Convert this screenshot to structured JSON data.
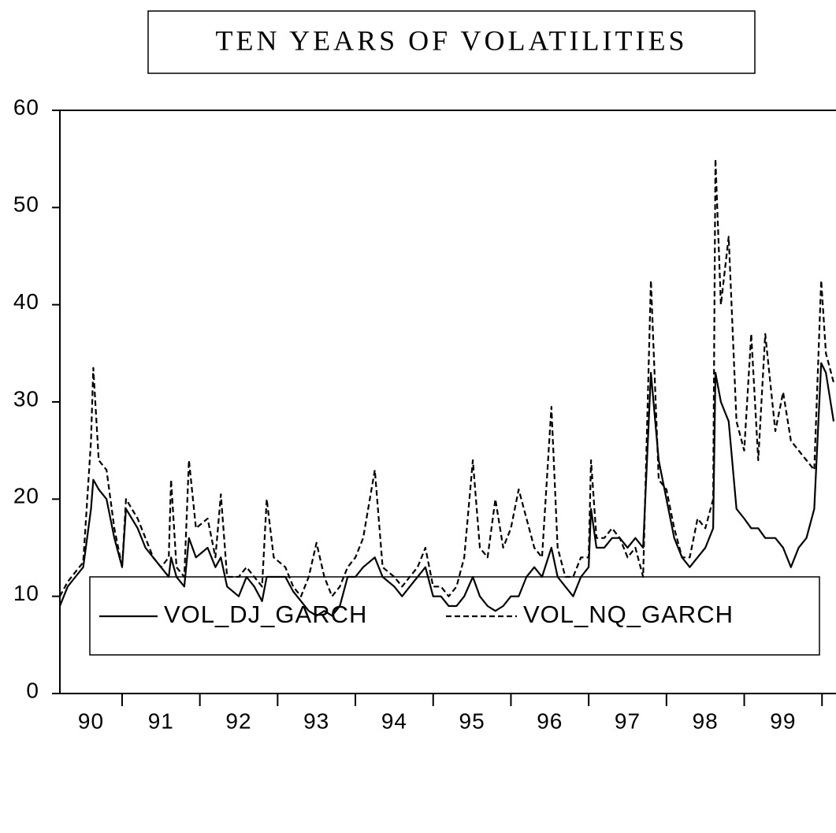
{
  "chart_data": {
    "type": "line",
    "title": "TEN YEARS OF VOLATILITIES",
    "x": [
      1990.2,
      1990.3,
      1990.4,
      1990.5,
      1990.6,
      1990.63,
      1990.7,
      1990.8,
      1990.9,
      1991.0,
      1991.05,
      1991.2,
      1991.3,
      1991.4,
      1991.5,
      1991.6,
      1991.63,
      1991.7,
      1991.8,
      1991.86,
      1991.95,
      1992.1,
      1992.2,
      1992.27,
      1992.35,
      1992.5,
      1992.6,
      1992.7,
      1992.8,
      1992.86,
      1992.95,
      1993.1,
      1993.2,
      1993.3,
      1993.4,
      1993.5,
      1993.6,
      1993.7,
      1993.8,
      1993.9,
      1994.0,
      1994.1,
      1994.25,
      1994.35,
      1994.5,
      1994.6,
      1994.7,
      1994.8,
      1994.9,
      1995.0,
      1995.1,
      1995.2,
      1995.3,
      1995.4,
      1995.51,
      1995.6,
      1995.7,
      1995.8,
      1995.9,
      1996.0,
      1996.1,
      1996.2,
      1996.3,
      1996.4,
      1996.52,
      1996.6,
      1996.7,
      1996.8,
      1996.9,
      1997.0,
      1997.03,
      1997.1,
      1997.2,
      1997.3,
      1997.4,
      1997.5,
      1997.6,
      1997.7,
      1997.8,
      1997.9,
      1998.0,
      1998.1,
      1998.2,
      1998.3,
      1998.4,
      1998.5,
      1998.6,
      1998.63,
      1998.7,
      1998.8,
      1998.9,
      1999.0,
      1999.09,
      1999.18,
      1999.27,
      1999.4,
      1999.5,
      1999.6,
      1999.7,
      1999.8,
      1999.9,
      1999.99,
      2000.05,
      2000.15
    ],
    "series": [
      {
        "name": "VOL_DJ_GARCH",
        "color": "#000000",
        "style": "solid",
        "values": [
          9,
          11,
          12,
          13,
          19,
          22,
          21,
          20,
          16,
          13,
          19,
          17,
          15,
          14,
          13,
          12,
          14,
          12,
          11,
          16,
          14,
          15,
          13,
          14,
          11,
          10,
          12,
          11,
          9.5,
          12,
          12,
          12,
          10.5,
          9.5,
          8.5,
          8,
          8.5,
          8,
          9,
          12,
          12,
          13,
          14,
          12,
          11,
          10,
          11,
          12,
          13,
          10,
          10,
          9,
          9,
          10,
          12,
          10,
          9,
          8.5,
          9,
          10,
          10,
          12,
          13,
          12,
          15,
          12,
          11,
          10,
          12,
          13,
          19,
          15,
          15,
          16,
          16,
          15,
          16,
          15,
          33,
          24,
          20,
          16,
          14,
          13,
          14,
          15,
          17,
          33,
          30,
          28,
          19,
          18,
          17,
          17,
          16,
          16,
          15,
          13,
          15,
          16,
          19,
          34,
          33,
          28
        ]
      },
      {
        "name": "VOL_NQ_GARCH",
        "color": "#000000",
        "style": "dashed",
        "values": [
          10,
          11.5,
          12.5,
          13.5,
          26,
          33.5,
          24,
          23,
          17,
          13,
          20,
          18,
          16,
          14,
          13,
          14,
          22,
          13,
          12,
          24,
          17,
          18,
          14,
          20.5,
          12,
          12,
          13,
          12,
          11,
          20,
          14,
          13,
          11,
          10,
          12,
          15.5,
          12,
          10,
          11,
          13,
          14,
          16,
          23,
          13,
          12,
          11,
          12,
          13,
          15,
          11,
          11,
          10,
          11,
          14,
          24,
          15,
          14,
          20,
          15,
          17,
          21,
          18,
          15,
          14,
          29.5,
          15,
          12,
          12,
          14,
          14,
          24,
          16,
          16,
          17,
          16,
          14,
          15,
          12,
          42.5,
          22,
          21,
          17,
          14,
          14,
          18,
          17,
          20,
          55,
          40,
          47,
          28,
          25,
          37,
          24,
          37,
          27,
          31,
          26,
          25,
          24,
          23,
          42.5,
          35,
          32
        ]
      }
    ],
    "xlim": [
      1990.2,
      2000.18
    ],
    "xticks": [
      {
        "value": 1990.6,
        "label": "90"
      },
      {
        "value": 1991.5,
        "label": "91"
      },
      {
        "value": 1992.5,
        "label": "92"
      },
      {
        "value": 1993.5,
        "label": "93"
      },
      {
        "value": 1994.5,
        "label": "94"
      },
      {
        "value": 1995.5,
        "label": "95"
      },
      {
        "value": 1996.5,
        "label": "96"
      },
      {
        "value": 1997.5,
        "label": "97"
      },
      {
        "value": 1998.5,
        "label": "98"
      },
      {
        "value": 1999.5,
        "label": "99"
      }
    ],
    "ylim": [
      0,
      60
    ],
    "yticks": [
      0,
      10,
      20,
      30,
      40,
      50,
      60
    ],
    "grid": false,
    "legend": "bottom"
  }
}
